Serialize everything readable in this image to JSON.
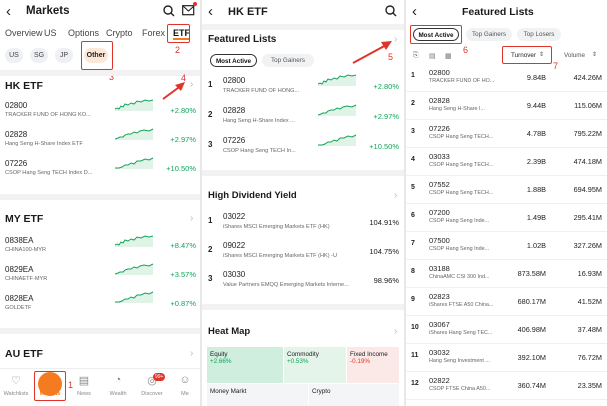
{
  "colors": {
    "accent_green": "#13a35a",
    "annotation_red": "#e0342b",
    "selected_orange": "#f47b20"
  },
  "p1": {
    "title": "Markets",
    "tabs": [
      "Overview",
      "US",
      "Options",
      "Crypto",
      "Forex",
      "ETF"
    ],
    "subtabs": [
      "US",
      "SG",
      "JP",
      "Other"
    ],
    "sections": [
      {
        "title": "HK ETF",
        "rows": [
          {
            "code": "02800",
            "name": "TRACKER FUND OF HONG KO...",
            "pct": "+2.80%"
          },
          {
            "code": "02828",
            "name": "Hang Seng H-Share Index ETF",
            "pct": "+2.97%"
          },
          {
            "code": "07226",
            "name": "CSOP Hang Seng TECH Index D...",
            "pct": "+10.50%"
          }
        ]
      },
      {
        "title": "MY ETF",
        "rows": [
          {
            "code": "0838EA",
            "name": "CHINA100-MYR",
            "pct": "+8.47%"
          },
          {
            "code": "0829EA",
            "name": "CHINAETF-MYR",
            "pct": "+3.57%"
          },
          {
            "code": "0828EA",
            "name": "GOLDETF",
            "pct": "+0.87%"
          }
        ]
      },
      {
        "title": "AU ETF",
        "rows": []
      }
    ],
    "nav": [
      "Watchlists",
      "Markets",
      "News",
      "Wealth",
      "Discover",
      "Me"
    ],
    "discover_badge": "99+",
    "annotations": [
      "1",
      "2",
      "3",
      "4"
    ]
  },
  "p2": {
    "title": "HK ETF",
    "featured_title": "Featured Lists",
    "chips": [
      "Most Active",
      "Top Gainers"
    ],
    "rows": [
      {
        "num": "1",
        "code": "02800",
        "name": "TRACKER FUND OF HONG...",
        "pct": "+2.80%"
      },
      {
        "num": "2",
        "code": "02828",
        "name": "Hang Seng H-Share Index ...",
        "pct": "+2.97%"
      },
      {
        "num": "3",
        "code": "07226",
        "name": "CSOP Hang Seng TECH In...",
        "pct": "+10.50%"
      }
    ],
    "dividend_title": "High Dividend Yield",
    "div_rows": [
      {
        "num": "1",
        "code": "03022",
        "name": "iShares MSCI Emerging Markets ETF (HK)",
        "pct": "104.91%"
      },
      {
        "num": "2",
        "code": "09022",
        "name": "iShares MSCI Emerging Markets ETF (HK) -U",
        "pct": "104.75%"
      },
      {
        "num": "3",
        "code": "03030",
        "name": "Value Partners EMQQ Emerging Markets Interne...",
        "pct": "98.96%"
      }
    ],
    "heatmap_title": "Heat Map",
    "heatmap": [
      {
        "label": "Equity",
        "pct": "+2.66%"
      },
      {
        "label": "Commodity",
        "pct": "+0.53%"
      },
      {
        "label": "Fixed Income",
        "pct": "-0.19%"
      }
    ],
    "heatmap_row2": [
      "Money Markt",
      "Crypto"
    ],
    "annotation": "5"
  },
  "p3": {
    "title": "Featured Lists",
    "chips": [
      "Most Active",
      "Top Gainers",
      "Top Losers"
    ],
    "col_turnover": "Turnover",
    "col_volume": "Volume",
    "rows": [
      {
        "num": "1",
        "code": "02800",
        "name": "TRACKER FUND OF HO...",
        "turnover": "9.84B",
        "volume": "424.26M"
      },
      {
        "num": "2",
        "code": "02828",
        "name": "Hang Seng H-Share I...",
        "turnover": "9.44B",
        "volume": "115.06M"
      },
      {
        "num": "3",
        "code": "07226",
        "name": "CSOP Hang Seng TECH...",
        "turnover": "4.78B",
        "volume": "795.22M"
      },
      {
        "num": "4",
        "code": "03033",
        "name": "CSOP Hang Seng TECH...",
        "turnover": "2.39B",
        "volume": "474.18M"
      },
      {
        "num": "5",
        "code": "07552",
        "name": "CSOP Hang Seng TECH...",
        "turnover": "1.88B",
        "volume": "694.95M"
      },
      {
        "num": "6",
        "code": "07200",
        "name": "CSOP Hang Seng Inde...",
        "turnover": "1.49B",
        "volume": "295.41M"
      },
      {
        "num": "7",
        "code": "07500",
        "name": "CSOP Hang Seng Inde...",
        "turnover": "1.02B",
        "volume": "327.26M"
      },
      {
        "num": "8",
        "code": "03188",
        "name": "ChinaAMC CSI 300 Ind...",
        "turnover": "873.58M",
        "volume": "16.93M"
      },
      {
        "num": "9",
        "code": "02823",
        "name": "iShares FTSE A50 China...",
        "turnover": "680.17M",
        "volume": "41.52M"
      },
      {
        "num": "10",
        "code": "03067",
        "name": "iShares Hang Seng TEC...",
        "turnover": "406.98M",
        "volume": "37.48M"
      },
      {
        "num": "11",
        "code": "03032",
        "name": "Hang Seng Investment ...",
        "turnover": "392.10M",
        "volume": "76.72M"
      },
      {
        "num": "12",
        "code": "02822",
        "name": "CSOP FTSE China A50...",
        "turnover": "360.74M",
        "volume": "23.35M"
      }
    ],
    "annotations": [
      "6",
      "7"
    ]
  }
}
